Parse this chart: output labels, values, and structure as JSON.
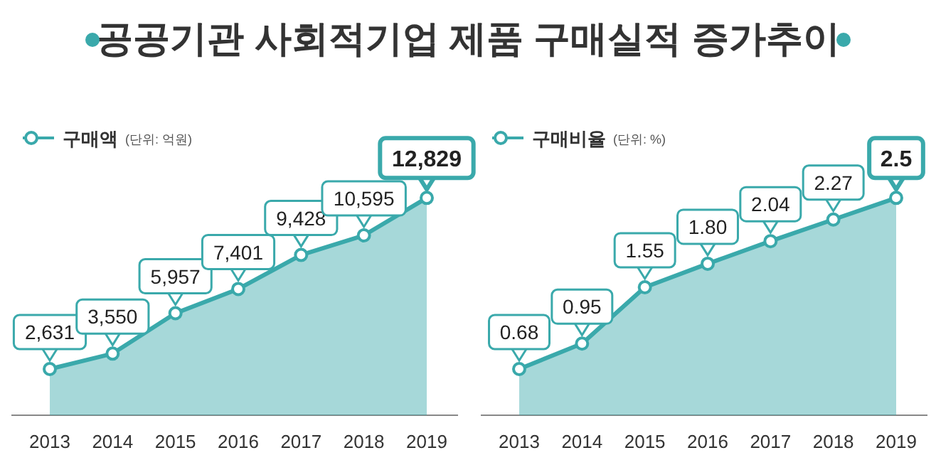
{
  "chart_data": [
    {
      "type": "area",
      "title": "공공기관 사회적기업 제품 구매실적 증가추이",
      "categories": [
        "2013",
        "2014",
        "2015",
        "2016",
        "2017",
        "2018",
        "2019"
      ],
      "series": [
        {
          "name": "구매액",
          "color": "#3aa9ab",
          "values": [
            2631,
            3550,
            5957,
            7401,
            9428,
            10595,
            12829
          ],
          "value_labels": [
            "2,631",
            "3,550",
            "5,957",
            "7,401",
            "9,428",
            "10,595",
            "12,829"
          ]
        }
      ],
      "annotations": [
        "(단위: 억원)"
      ],
      "legend": "top left",
      "marker": "circle"
    },
    {
      "type": "area",
      "categories": [
        "2013",
        "2014",
        "2015",
        "2016",
        "2017",
        "2018",
        "2019"
      ],
      "series": [
        {
          "name": "구매비율",
          "color": "#3aa9ab",
          "values": [
            0.68,
            0.95,
            1.55,
            1.8,
            2.04,
            2.27,
            2.5
          ],
          "value_labels": [
            "0.68",
            "0.95",
            "1.55",
            "1.80",
            "2.04",
            "2.27",
            "2.5"
          ]
        }
      ],
      "annotations": [
        "(단위: %)"
      ],
      "legend": "top left",
      "marker": "circle"
    }
  ]
}
